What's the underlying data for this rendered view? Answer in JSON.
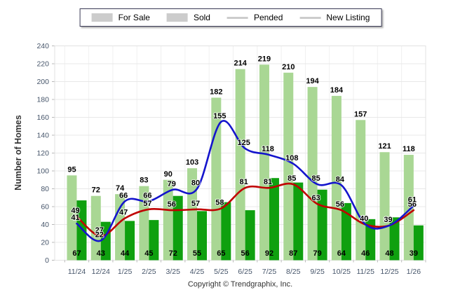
{
  "chart_data": {
    "type": "combo-bar-line",
    "title": "",
    "xlabel": "",
    "ylabel": "Number of Homes",
    "categories": [
      "11/24",
      "12/24",
      "1/25",
      "2/25",
      "3/25",
      "4/25",
      "5/25",
      "6/25",
      "7/25",
      "8/25",
      "9/25",
      "10/25",
      "11/25",
      "12/25",
      "1/26"
    ],
    "series": [
      {
        "name": "For Sale",
        "type": "bar",
        "color": "#A9D794",
        "values": [
          95,
          72,
          74,
          83,
          90,
          103,
          182,
          214,
          219,
          210,
          194,
          184,
          157,
          121,
          118
        ]
      },
      {
        "name": "Sold",
        "type": "bar",
        "color": "#0FA00F",
        "values": [
          67,
          43,
          44,
          45,
          72,
          55,
          65,
          56,
          92,
          87,
          79,
          64,
          46,
          48,
          39
        ]
      },
      {
        "name": "Pended",
        "type": "line",
        "color": "#C00000",
        "values": [
          49,
          27,
          47,
          57,
          56,
          57,
          58,
          81,
          81,
          85,
          63,
          56,
          40,
          39,
          56
        ]
      },
      {
        "name": "New Listing",
        "type": "line",
        "color": "#1414CC",
        "values": [
          41,
          22,
          66,
          66,
          79,
          80,
          155,
          125,
          118,
          108,
          85,
          84,
          40,
          39,
          61
        ]
      }
    ],
    "ylim": [
      0,
      240
    ],
    "y_tick_step": 20,
    "y_ticks": [
      0,
      20,
      40,
      60,
      80,
      100,
      120,
      140,
      160,
      180,
      200,
      220,
      240
    ],
    "grid": true,
    "legend_position": "top",
    "value_labels_shown": true
  },
  "footer": {
    "copyright": "Copyright © Trendgraphix, Inc."
  }
}
